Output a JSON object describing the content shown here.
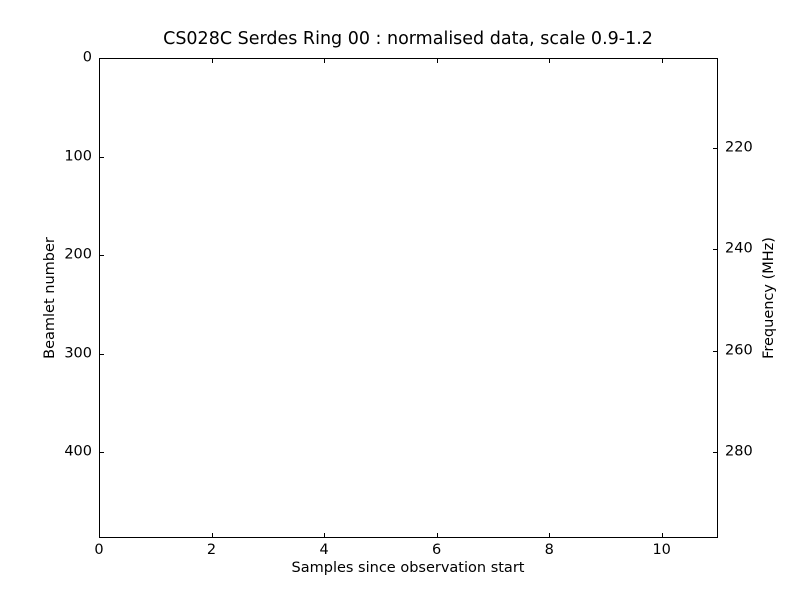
{
  "chart_data": {
    "type": "heatmap",
    "title": "CS028C Serdes Ring 00 : normalised data, scale 0.9-1.2",
    "xlabel": "Samples since observation start",
    "ylabel_left": "Beamlet number",
    "ylabel_right": "Frequency (MHz)",
    "xlim": [
      0,
      11
    ],
    "ylim_left": [
      0,
      487
    ],
    "y_left_inverted": true,
    "ylim_right": [
      202.2,
      297.0
    ],
    "xticks": [
      0,
      2,
      4,
      6,
      8,
      10
    ],
    "yticks_left": [
      0,
      100,
      200,
      300,
      400
    ],
    "yticks_right": [
      220,
      240,
      260,
      280
    ],
    "values": [],
    "grid": false,
    "legend": false,
    "colors": {
      "background": "#ffffff",
      "frame": "#000000",
      "text": "#000000"
    }
  }
}
